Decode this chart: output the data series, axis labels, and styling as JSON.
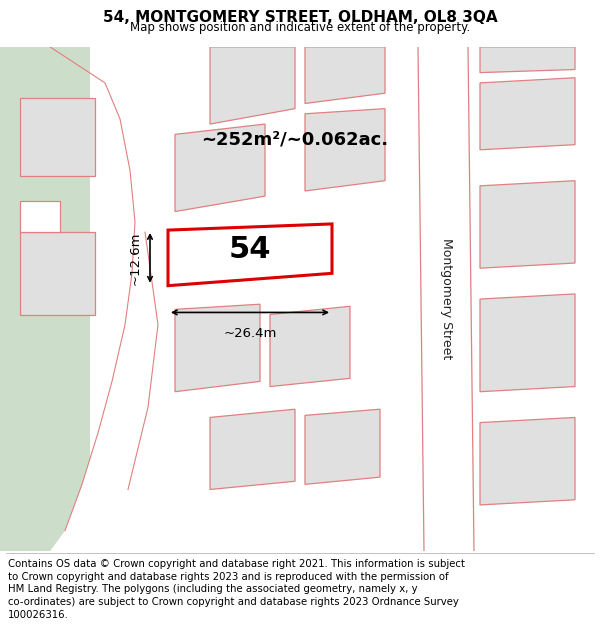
{
  "title_line1": "54, MONTGOMERY STREET, OLDHAM, OL8 3QA",
  "title_line2": "Map shows position and indicative extent of the property.",
  "area_label": "~252m²/~0.062ac.",
  "number_label": "54",
  "width_label": "~26.4m",
  "height_label": "~12.6m",
  "street_label": "Montgomery Street",
  "green_area_color": "#ccdeca",
  "building_fill": "#e0e0e0",
  "building_outline": "#e08080",
  "highlight_fill": "#ffffff",
  "highlight_outline": "#dd0000",
  "footer_lines": [
    "Contains OS data © Crown copyright and database right 2021. This information is subject",
    "to Crown copyright and database rights 2023 and is reproduced with the permission of",
    "HM Land Registry. The polygons (including the associated geometry, namely x, y",
    "co-ordinates) are subject to Crown copyright and database rights 2023 Ordnance Survey",
    "100026316."
  ]
}
